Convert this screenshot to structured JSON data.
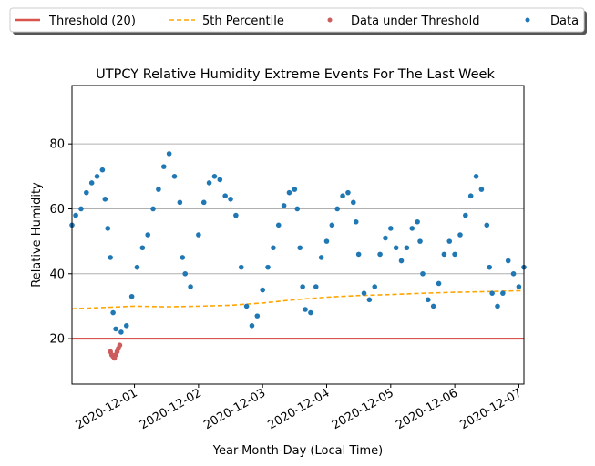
{
  "chart_data": {
    "type": "scatter",
    "title": "UTPCY Relative Humidity Extreme Events For The Last Week",
    "xlabel": "Year-Month-Day (Local Time)",
    "ylabel": "Relative Humidity",
    "xlim": [
      "2020-11-30T00:36",
      "2020-12-07T01:54"
    ],
    "ylim": [
      6,
      98
    ],
    "x_ticks": [
      "2020-12-01",
      "2020-12-02",
      "2020-12-03",
      "2020-12-04",
      "2020-12-05",
      "2020-12-06",
      "2020-12-07"
    ],
    "y_ticks": [
      20,
      40,
      60,
      80
    ],
    "grid": "y-major",
    "legend": {
      "placement": "top, above plot",
      "entries": [
        {
          "label": "Threshold (20)",
          "kind": "line",
          "color": "#d9534f"
        },
        {
          "label": "5th Percentile",
          "kind": "dashed-line",
          "color": "#ffa500"
        },
        {
          "label": "Data under Threshold",
          "kind": "marker",
          "color": "#cd5c5c"
        },
        {
          "label": "Data",
          "kind": "marker",
          "color": "#1f77b4"
        }
      ]
    },
    "threshold": {
      "name": "Threshold (20)",
      "value": 20,
      "color": "#d9534f"
    },
    "percentile_line": {
      "name": "5th Percentile",
      "color": "#ffa500",
      "points": [
        [
          "2020-11-30T00:36",
          29.2
        ],
        [
          "2020-11-30T12:00",
          29.6
        ],
        [
          "2020-12-01T00:00",
          30.0
        ],
        [
          "2020-12-01T12:00",
          29.8
        ],
        [
          "2020-12-02T00:00",
          30.0
        ],
        [
          "2020-12-02T12:00",
          30.3
        ],
        [
          "2020-12-03T00:00",
          31.0
        ],
        [
          "2020-12-03T12:00",
          32.0
        ],
        [
          "2020-12-04T00:00",
          32.8
        ],
        [
          "2020-12-04T12:00",
          33.3
        ],
        [
          "2020-12-05T00:00",
          33.6
        ],
        [
          "2020-12-05T12:00",
          34.0
        ],
        [
          "2020-12-06T00:00",
          34.3
        ],
        [
          "2020-12-06T12:00",
          34.5
        ],
        [
          "2020-12-07T01:54",
          34.8
        ]
      ]
    },
    "series": [
      {
        "name": "Data",
        "color": "#1f77b4",
        "points": [
          [
            "2020-11-30T00:36",
            55
          ],
          [
            "2020-11-30T02:00",
            58
          ],
          [
            "2020-11-30T04:00",
            60
          ],
          [
            "2020-11-30T06:00",
            65
          ],
          [
            "2020-11-30T08:00",
            68
          ],
          [
            "2020-11-30T10:00",
            70
          ],
          [
            "2020-11-30T12:00",
            72
          ],
          [
            "2020-11-30T13:00",
            63
          ],
          [
            "2020-11-30T14:00",
            54
          ],
          [
            "2020-11-30T15:00",
            45
          ],
          [
            "2020-11-30T16:00",
            28
          ],
          [
            "2020-11-30T17:00",
            23
          ],
          [
            "2020-11-30T19:00",
            22
          ],
          [
            "2020-11-30T21:00",
            24
          ],
          [
            "2020-11-30T23:00",
            33
          ],
          [
            "2020-12-01T01:00",
            42
          ],
          [
            "2020-12-01T03:00",
            48
          ],
          [
            "2020-12-01T05:00",
            52
          ],
          [
            "2020-12-01T07:00",
            60
          ],
          [
            "2020-12-01T09:00",
            66
          ],
          [
            "2020-12-01T11:00",
            73
          ],
          [
            "2020-12-01T13:00",
            77
          ],
          [
            "2020-12-01T15:00",
            70
          ],
          [
            "2020-12-01T17:00",
            62
          ],
          [
            "2020-12-01T18:00",
            45
          ],
          [
            "2020-12-01T19:00",
            40
          ],
          [
            "2020-12-01T21:00",
            36
          ],
          [
            "2020-12-02T00:00",
            52
          ],
          [
            "2020-12-02T02:00",
            62
          ],
          [
            "2020-12-02T04:00",
            68
          ],
          [
            "2020-12-02T06:00",
            70
          ],
          [
            "2020-12-02T08:00",
            69
          ],
          [
            "2020-12-02T10:00",
            64
          ],
          [
            "2020-12-02T12:00",
            63
          ],
          [
            "2020-12-02T14:00",
            58
          ],
          [
            "2020-12-02T16:00",
            42
          ],
          [
            "2020-12-02T18:00",
            30
          ],
          [
            "2020-12-02T20:00",
            24
          ],
          [
            "2020-12-02T22:00",
            27
          ],
          [
            "2020-12-03T00:00",
            35
          ],
          [
            "2020-12-03T02:00",
            42
          ],
          [
            "2020-12-03T04:00",
            48
          ],
          [
            "2020-12-03T06:00",
            55
          ],
          [
            "2020-12-03T08:00",
            61
          ],
          [
            "2020-12-03T10:00",
            65
          ],
          [
            "2020-12-03T12:00",
            66
          ],
          [
            "2020-12-03T13:00",
            60
          ],
          [
            "2020-12-03T14:00",
            48
          ],
          [
            "2020-12-03T15:00",
            36
          ],
          [
            "2020-12-03T16:00",
            29
          ],
          [
            "2020-12-03T18:00",
            28
          ],
          [
            "2020-12-03T20:00",
            36
          ],
          [
            "2020-12-03T22:00",
            45
          ],
          [
            "2020-12-04T00:00",
            50
          ],
          [
            "2020-12-04T02:00",
            55
          ],
          [
            "2020-12-04T04:00",
            60
          ],
          [
            "2020-12-04T06:00",
            64
          ],
          [
            "2020-12-04T08:00",
            65
          ],
          [
            "2020-12-04T10:00",
            62
          ],
          [
            "2020-12-04T11:00",
            56
          ],
          [
            "2020-12-04T12:00",
            46
          ],
          [
            "2020-12-04T14:00",
            34
          ],
          [
            "2020-12-04T16:00",
            32
          ],
          [
            "2020-12-04T18:00",
            36
          ],
          [
            "2020-12-04T20:00",
            46
          ],
          [
            "2020-12-04T22:00",
            51
          ],
          [
            "2020-12-05T00:00",
            54
          ],
          [
            "2020-12-05T02:00",
            48
          ],
          [
            "2020-12-05T04:00",
            44
          ],
          [
            "2020-12-05T06:00",
            48
          ],
          [
            "2020-12-05T08:00",
            54
          ],
          [
            "2020-12-05T10:00",
            56
          ],
          [
            "2020-12-05T11:00",
            50
          ],
          [
            "2020-12-05T12:00",
            40
          ],
          [
            "2020-12-05T14:00",
            32
          ],
          [
            "2020-12-05T16:00",
            30
          ],
          [
            "2020-12-05T18:00",
            37
          ],
          [
            "2020-12-05T20:00",
            46
          ],
          [
            "2020-12-05T22:00",
            50
          ],
          [
            "2020-12-06T00:00",
            46
          ],
          [
            "2020-12-06T02:00",
            52
          ],
          [
            "2020-12-06T04:00",
            58
          ],
          [
            "2020-12-06T06:00",
            64
          ],
          [
            "2020-12-06T08:00",
            70
          ],
          [
            "2020-12-06T10:00",
            66
          ],
          [
            "2020-12-06T12:00",
            55
          ],
          [
            "2020-12-06T13:00",
            42
          ],
          [
            "2020-12-06T14:00",
            34
          ],
          [
            "2020-12-06T16:00",
            30
          ],
          [
            "2020-12-06T18:00",
            34
          ],
          [
            "2020-12-06T20:00",
            44
          ],
          [
            "2020-12-06T22:00",
            40
          ],
          [
            "2020-12-07T00:00",
            36
          ],
          [
            "2020-12-07T01:54",
            42
          ]
        ]
      },
      {
        "name": "Data under Threshold",
        "color": "#cd5c5c",
        "points": [
          [
            "2020-11-30T15:00",
            16
          ],
          [
            "2020-11-30T15:30",
            15
          ],
          [
            "2020-11-30T16:00",
            14.5
          ],
          [
            "2020-11-30T16:30",
            14
          ],
          [
            "2020-11-30T17:00",
            15
          ],
          [
            "2020-11-30T17:30",
            16
          ],
          [
            "2020-11-30T18:00",
            17
          ],
          [
            "2020-11-30T18:30",
            18
          ]
        ]
      }
    ]
  }
}
